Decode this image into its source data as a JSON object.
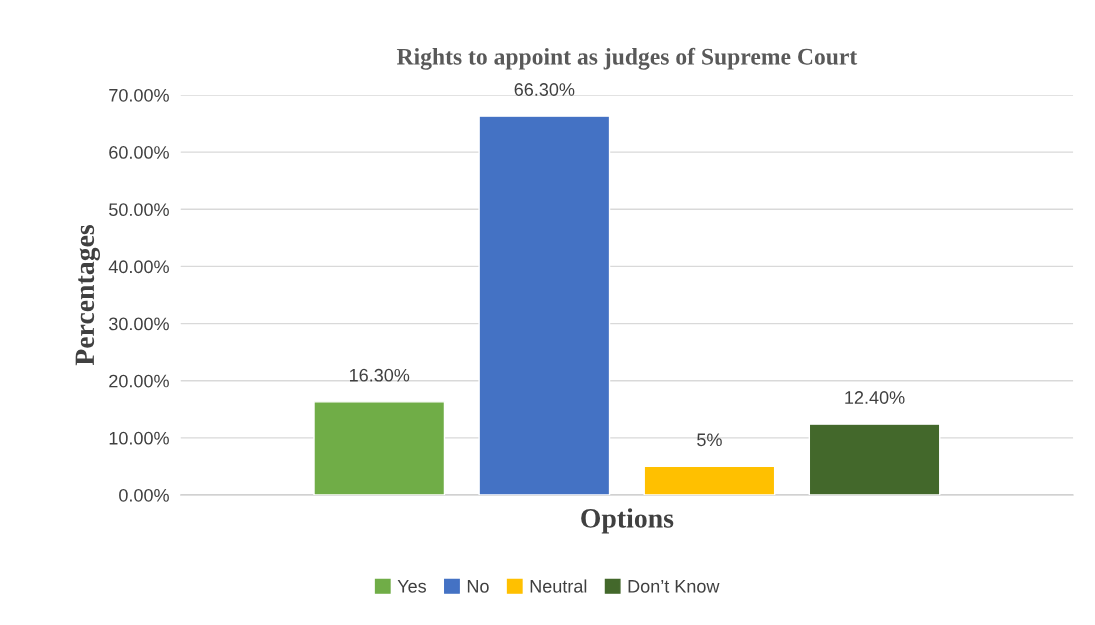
{
  "chart_data": {
    "type": "bar",
    "title": "Rights to appoint as judges of Supreme Court",
    "xlabel": "Options",
    "ylabel": "Percentages",
    "categories": [
      null
    ],
    "series": [
      {
        "name": "Yes",
        "color": "#70ad47",
        "values": [
          16.3
        ],
        "value_labels": [
          "16.30%"
        ]
      },
      {
        "name": "No",
        "color": "#4472c4",
        "values": [
          66.3
        ],
        "value_labels": [
          "66.30%"
        ]
      },
      {
        "name": "Neutral",
        "color": "#ffc000",
        "values": [
          5
        ],
        "value_labels": [
          "5%"
        ]
      },
      {
        "name": "Don’t Know",
        "color": "#43682b",
        "values": [
          12.4
        ],
        "value_labels": [
          "12.40%"
        ]
      }
    ],
    "ylim": [
      0,
      70
    ],
    "yticks": [
      {
        "value": 0,
        "label": "0.00%"
      },
      {
        "value": 10,
        "label": "10.00%"
      },
      {
        "value": 20,
        "label": "20.00%"
      },
      {
        "value": 30,
        "label": "30.00%"
      },
      {
        "value": 40,
        "label": "40.00%"
      },
      {
        "value": 50,
        "label": "50.00%"
      },
      {
        "value": 60,
        "label": "60.00%"
      },
      {
        "value": 70,
        "label": "70.00%"
      }
    ],
    "grid": "y",
    "legend": "bottom"
  }
}
